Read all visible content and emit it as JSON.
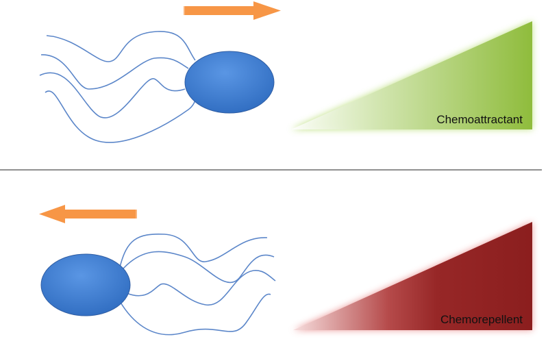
{
  "panels": [
    {
      "id": "attract",
      "gradient_label": "Chemoattractant",
      "gradient_color": "#8fbc3c",
      "gradient_glow": "#b5dc6e",
      "movement": "right",
      "arrow_color": "#f79646",
      "cell_color": "#3a7bd5",
      "flagella_color": "#5b86c9"
    },
    {
      "id": "repel",
      "gradient_label": "Chemorepellent",
      "gradient_color": "#8b1e1e",
      "gradient_glow": "#e88888",
      "movement": "left",
      "arrow_color": "#f79646",
      "cell_color": "#3a7bd5",
      "flagella_color": "#5b86c9"
    }
  ]
}
